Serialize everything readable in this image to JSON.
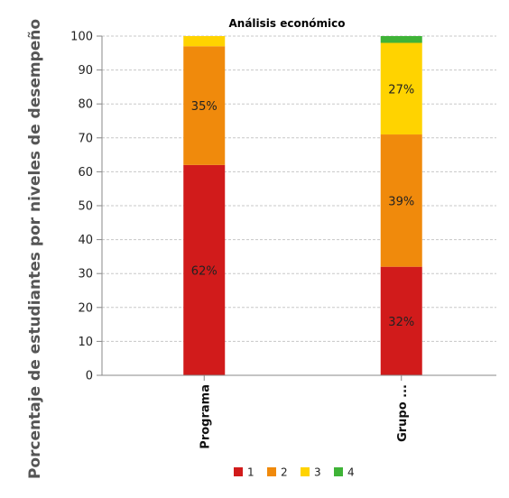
{
  "chart_data": {
    "type": "bar",
    "stacked": true,
    "title": "Análisis económico",
    "ylabel": "Porcentaje de estudiantes por niveles de desempeño",
    "xlabel": "",
    "ylim": [
      0,
      100
    ],
    "yticks": [
      0,
      10,
      20,
      30,
      40,
      50,
      60,
      70,
      80,
      90,
      100
    ],
    "grid": true,
    "legend_position": "bottom",
    "categories": [
      "Programa",
      "Grupo ..."
    ],
    "series": [
      {
        "name": "1",
        "color": "#d11b1b",
        "values": [
          62,
          32
        ],
        "labels": [
          "62%",
          "32%"
        ]
      },
      {
        "name": "2",
        "color": "#f08a0c",
        "values": [
          35,
          39
        ],
        "labels": [
          "35%",
          "39%"
        ]
      },
      {
        "name": "3",
        "color": "#ffd300",
        "values": [
          3,
          27
        ],
        "labels": [
          "",
          "27%"
        ]
      },
      {
        "name": "4",
        "color": "#3fb337",
        "values": [
          0,
          2
        ],
        "labels": [
          "",
          ""
        ]
      }
    ]
  }
}
